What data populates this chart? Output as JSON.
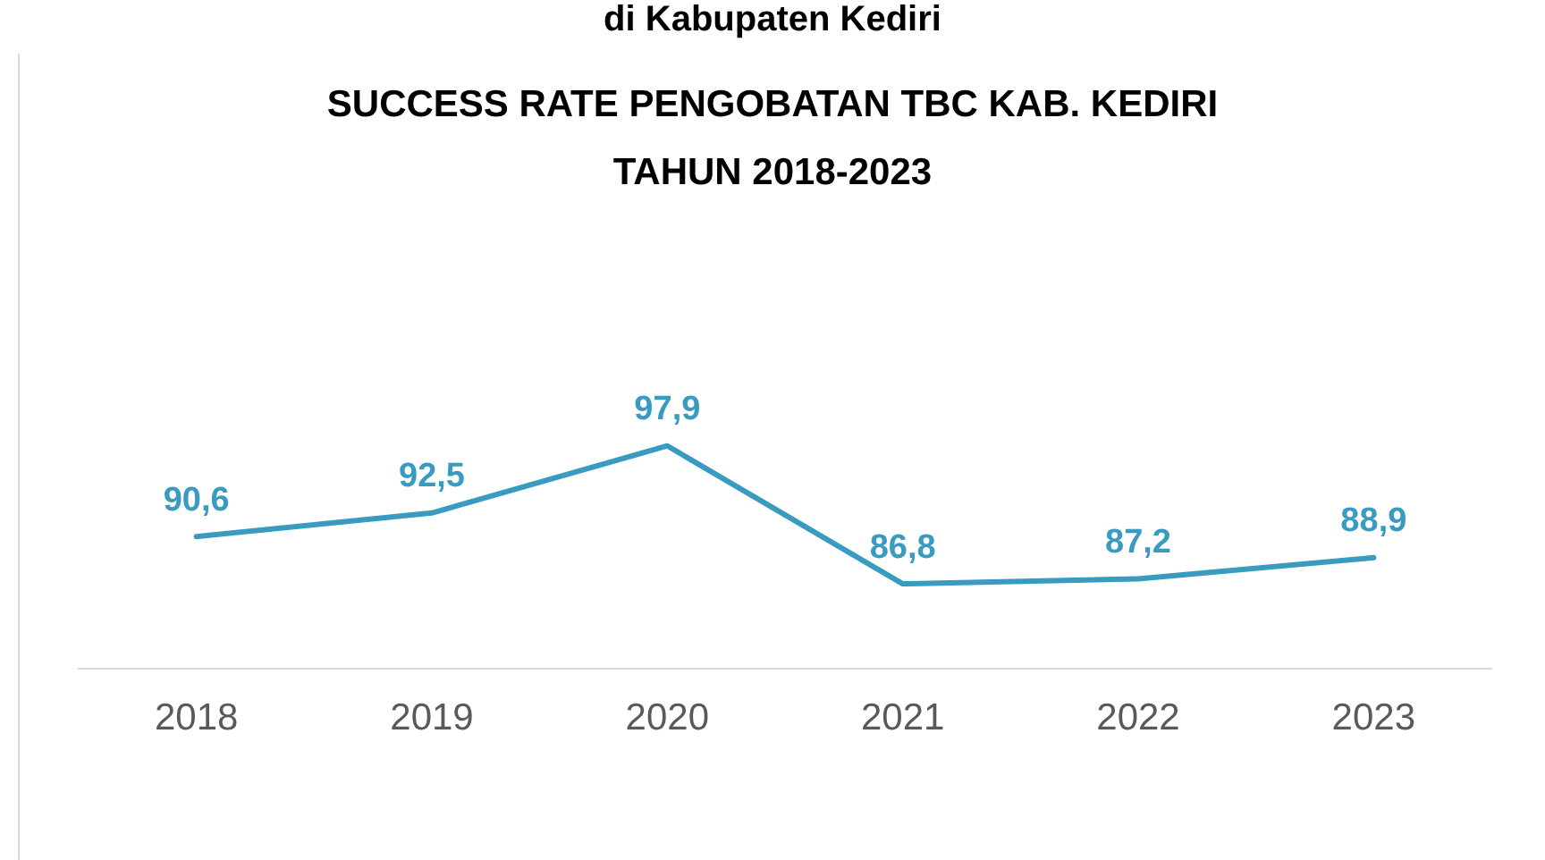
{
  "chart_data": {
    "type": "line",
    "title": "SUCCESS RATE PENGOBATAN TBC KAB. KEDIRI TAHUN 2018-2023",
    "annotations": [
      "di Kabupaten Kediri"
    ],
    "categories": [
      "2018",
      "2019",
      "2020",
      "2021",
      "2022",
      "2023"
    ],
    "series": [
      {
        "color": "#3a9bc1",
        "values": [
          90.6,
          92.5,
          97.9,
          86.8,
          87.2,
          88.9
        ],
        "value_labels": [
          "90,6",
          "92,5",
          "97,9",
          "86,8",
          "87,2",
          "88,9"
        ]
      }
    ],
    "grid": false,
    "legend": false,
    "line_style": "solid"
  }
}
